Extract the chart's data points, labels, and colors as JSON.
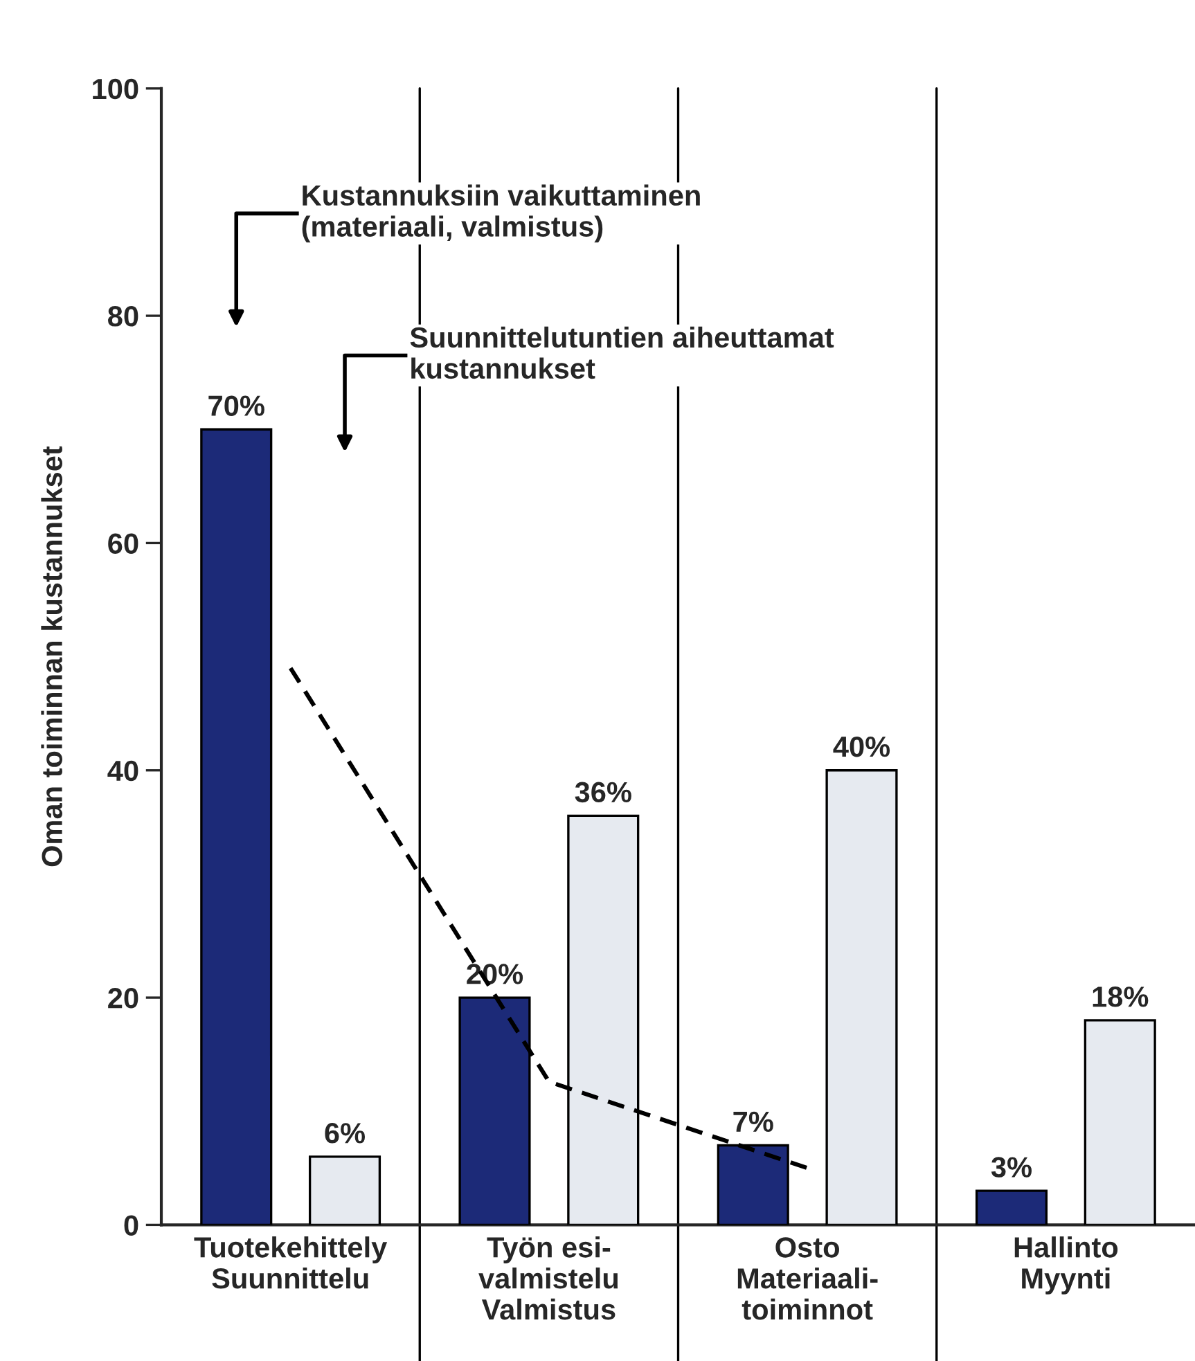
{
  "chart_data": {
    "type": "bar",
    "ylabel": "Oman toiminnan kustannukset",
    "categories": [
      "Tuotekehittely\nSuunnittelu",
      "Työn esi-\nvalmistelu\nValmistus",
      "Osto\nMateriaali-\ntoiminnot",
      "Hallinto\nMyynti"
    ],
    "series": [
      {
        "color": "#1c2a78",
        "values": [
          70,
          20,
          7,
          3
        ],
        "value_labels": [
          "70%",
          "20%",
          "7%",
          "3%"
        ]
      },
      {
        "color": "#e6eaf0",
        "values": [
          6,
          36,
          40,
          18
        ],
        "value_labels": [
          "6%",
          "36%",
          "40%",
          "18%"
        ]
      },
      {
        "type": "line",
        "line_style": "dashed",
        "color": "#000000",
        "values": [
          49,
          12.6,
          5,
          null
        ]
      }
    ],
    "annotations": [
      "Kustannuksiin vaikuttaminen\n(materiaali, valmistus)",
      "Suunnittelutuntien aiheuttamat\nkustannukset"
    ],
    "ylim": [
      0,
      100
    ],
    "yticks": [
      0,
      20,
      40,
      60,
      80,
      100
    ],
    "grid": "x"
  }
}
